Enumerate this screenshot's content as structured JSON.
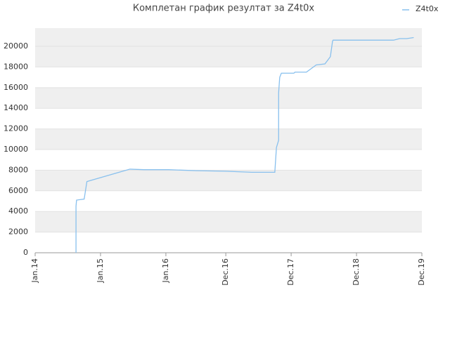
{
  "chart_data": {
    "type": "line",
    "title": "Комплетан график резултат за Z4t0x",
    "x": [
      7.5,
      7.5,
      7.6,
      9.0,
      9.5,
      17.4,
      20.0,
      24.5,
      29.7,
      34.9,
      39.8,
      44.0,
      44.3,
      44.7,
      44.7,
      44.9,
      45.2,
      47.5,
      47.7,
      49.8,
      51.6,
      53.2,
      54.2,
      54.6,
      54.7,
      65.8,
      66.9,
      68.2,
      69.5
    ],
    "series": [
      {
        "name": "Z4t0x",
        "color": "#88c0ee",
        "values": [
          0,
          4500,
          5100,
          5200,
          6900,
          8100,
          8050,
          8050,
          7950,
          7900,
          7800,
          7800,
          10200,
          10900,
          15500,
          17000,
          17400,
          17400,
          17500,
          17500,
          18200,
          18300,
          19000,
          20500,
          20600,
          20600,
          20750,
          20750,
          20850
        ]
      }
    ],
    "xlim": [
      0,
      71
    ],
    "xticks": [
      {
        "value": 0,
        "label": "Jan.14"
      },
      {
        "value": 12,
        "label": "Jan.15"
      },
      {
        "value": 24,
        "label": "Jan.16"
      },
      {
        "value": 35,
        "label": "Dec.16"
      },
      {
        "value": 47,
        "label": "Dec.17"
      },
      {
        "value": 59,
        "label": "Dec.18"
      },
      {
        "value": 71,
        "label": "Dec.19"
      }
    ],
    "ylim": [
      0,
      21770
    ],
    "yticks": [
      0,
      2000,
      4000,
      6000,
      8000,
      10000,
      12000,
      14000,
      16000,
      18000,
      20000
    ],
    "grid": true,
    "legend": "top-right"
  }
}
